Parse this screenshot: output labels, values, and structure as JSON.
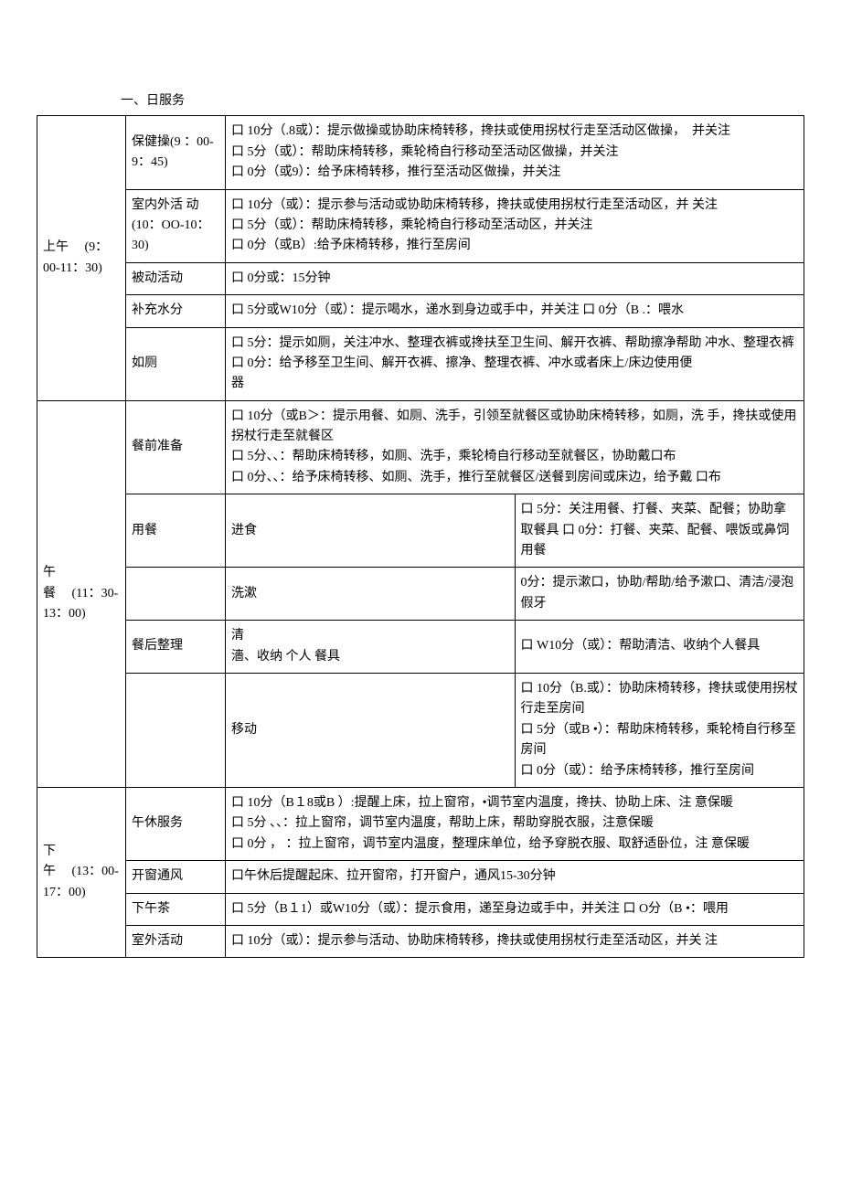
{
  "title": "一、日服务",
  "morning": {
    "label": "上午　 (9：00-11：30)",
    "items": {
      "health_ex": {
        "label": "保健操(9 ：00-9：45)",
        "text": "口 10分（.8或）：提示做操或协助床椅转移，搀扶或使用拐杖行走至活动区做操，　并关注\n口 5分（或）：帮助床椅转移，乘轮椅自行移动至活动区做操，并关注\n口 0分（或9）：给予床椅转移，推行至活动区做操，并关注"
      },
      "indoor": {
        "label": "室内外活 动　　　(10：OO-10：30)",
        "text": "口 10分（或）：提示参与活动或协助床椅转移，搀扶或使用拐杖行走至活动区，并 关注\n口 5分（或）：帮助床椅转移，乘轮椅自行移动至活动区，并关注\n口 0分（或B）:给予床椅转移，推行至房间"
      },
      "passive": {
        "label": "被动活动",
        "text": "口 0分或：15分钟"
      },
      "water": {
        "label": "补充水分",
        "text": "口 5分或W10分（或）：提示喝水，递水到身边或手中，并关注 口 0分（B .：喂水"
      },
      "toilet": {
        "label": "如厕",
        "text": "口 5分：提示如厕，关注冲水、整理衣裤或搀扶至卫生间、解开衣裤、帮助擦净帮助 冲水、整理衣裤\n口 0分：给予移至卫生间、解开衣裤、擦净、整理衣裤、冲水或者床上/床边使用便\n器"
      }
    }
  },
  "lunch": {
    "label": "午\n餐　 (11：30-13：00)",
    "items": {
      "before": {
        "label": "餐前准备",
        "text": "口 10分（或B＞：提示用餐、如厕、洗手，引领至就餐区或协助床椅转移，如厕，洗 手，搀扶或使用拐杖行走至就餐区\n口 5分、、：帮助床椅转移，如厕、洗手，乘轮椅自行移动至就餐区，协助戴口布\n口 0分、、：给予床椅转移、如厕、洗手，推行至就餐区/送餐到房间或床边，给予戴 口布"
      },
      "eat": {
        "label": "用餐",
        "sub": "进食",
        "text": "口 5分：关注用餐、打餐、夹菜、配餐；协助拿取餐具 口 0分：打餐、夹菜、配餐、喂饭或鼻饲用餐"
      },
      "after_label": "餐后整理",
      "wash": {
        "sub": "洗漱",
        "text": "0分：提示漱口，协助/帮助/给予漱口、清洁/浸泡假牙"
      },
      "clean": {
        "sub": "清\n濇、收纳 个人 餐具",
        "text": "口 W10分（或）：帮助清洁、收纳个人餐具"
      },
      "move": {
        "sub": "移动",
        "text": "口 10分（B.或）：协助床椅转移，搀扶或使用拐杖行走至房间\n口 5分（或B •）：帮助床椅转移，乘轮椅自行移至房间\n口 0分（或）：给予床椅转移，推行至房间"
      }
    }
  },
  "afternoon": {
    "label": "下\n午　 (13：00-17：00)",
    "items": {
      "nap": {
        "label": "午休服务",
        "text": "口 10分（B１8或B ）:提醒上床，拉上窗帘，•调节室内温度，搀扶、协助上床、注 意保暖\n口 5分 、、：拉上窗帘，调节室内温度，帮助上床，帮助穿脱衣服，注意保暖\n口 0分 ， ：拉上窗帘，调节室内温度，整理床单位，给予穿脱衣服、取舒适卧位，注 意保暖"
      },
      "window": {
        "label": "开窗通风",
        "text": "口午休后提醒起床、拉开窗帘，打开窗户，通风15-30分钟"
      },
      "tea": {
        "label": "下午茶",
        "text": "口 5分（B１1）或W10分（或）：提示食用，递至身边或手中，并关注 口 O分（B •：喂用"
      },
      "outdoor": {
        "label": "室外活动",
        "text": "口 10分（或）：提示参与活动、协助床椅转移，搀扶或使用拐杖行走至活动区，并关 注"
      }
    }
  }
}
